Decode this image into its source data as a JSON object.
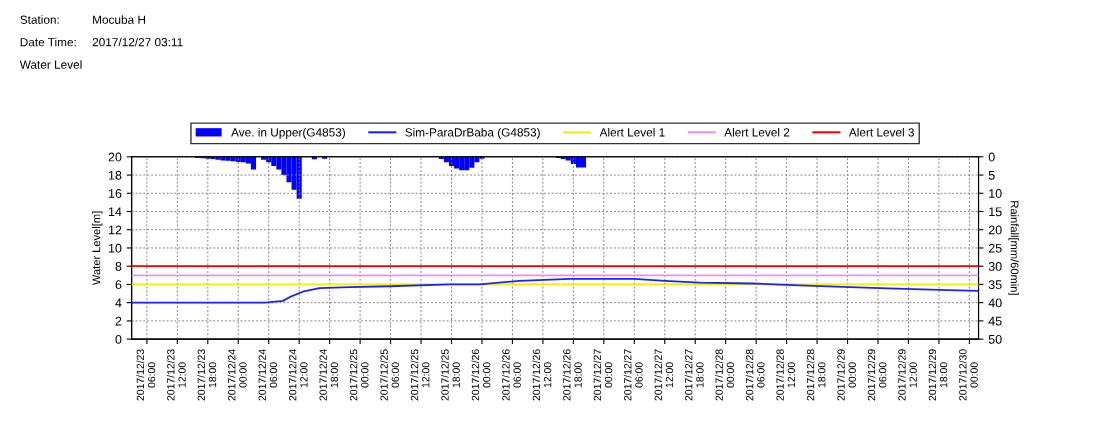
{
  "chart_data": {
    "type": "line",
    "title": "Water Level",
    "annotations": [
      "Station:",
      "Mocuba H",
      "Date Time:",
      "2017/12/27 03:11"
    ],
    "ylabel": "Water Level[m]",
    "y2label": "Rainfall[mm/60min]",
    "xlim": [
      "2017-12-23T03:00",
      "2017-12-30T01:48"
    ],
    "xticks": [
      {
        "value": "2017-12-23T06:00",
        "label": "2017/12/23\n06:00"
      },
      {
        "value": "2017-12-23T12:00",
        "label": "2017/12/23\n12:00"
      },
      {
        "value": "2017-12-23T18:00",
        "label": "2017/12/23\n18:00"
      },
      {
        "value": "2017-12-24T00:00",
        "label": "2017/12/24\n00:00"
      },
      {
        "value": "2017-12-24T06:00",
        "label": "2017/12/24\n06:00"
      },
      {
        "value": "2017-12-24T12:00",
        "label": "2017/12/24\n12:00"
      },
      {
        "value": "2017-12-24T18:00",
        "label": "2017/12/24\n18:00"
      },
      {
        "value": "2017-12-25T00:00",
        "label": "2017/12/25\n00:00"
      },
      {
        "value": "2017-12-25T06:00",
        "label": "2017/12/25\n06:00"
      },
      {
        "value": "2017-12-25T12:00",
        "label": "2017/12/25\n12:00"
      },
      {
        "value": "2017-12-25T18:00",
        "label": "2017/12/25\n18:00"
      },
      {
        "value": "2017-12-26T00:00",
        "label": "2017/12/26\n00:00"
      },
      {
        "value": "2017-12-26T06:00",
        "label": "2017/12/26\n06:00"
      },
      {
        "value": "2017-12-26T12:00",
        "label": "2017/12/26\n12:00"
      },
      {
        "value": "2017-12-26T18:00",
        "label": "2017/12/26\n18:00"
      },
      {
        "value": "2017-12-27T00:00",
        "label": "2017/12/27\n00:00"
      },
      {
        "value": "2017-12-27T06:00",
        "label": "2017/12/27\n06:00"
      },
      {
        "value": "2017-12-27T12:00",
        "label": "2017/12/27\n12:00"
      },
      {
        "value": "2017-12-27T18:00",
        "label": "2017/12/27\n18:00"
      },
      {
        "value": "2017-12-28T00:00",
        "label": "2017/12/28\n00:00"
      },
      {
        "value": "2017-12-28T06:00",
        "label": "2017/12/28\n06:00"
      },
      {
        "value": "2017-12-28T12:00",
        "label": "2017/12/28\n12:00"
      },
      {
        "value": "2017-12-28T18:00",
        "label": "2017/12/28\n18:00"
      },
      {
        "value": "2017-12-29T00:00",
        "label": "2017/12/29\n00:00"
      },
      {
        "value": "2017-12-29T06:00",
        "label": "2017/12/29\n06:00"
      },
      {
        "value": "2017-12-29T12:00",
        "label": "2017/12/29\n12:00"
      },
      {
        "value": "2017-12-29T18:00",
        "label": "2017/12/29\n18:00"
      },
      {
        "value": "2017-12-30T00:00",
        "label": "2017/12/30\n00:00"
      }
    ],
    "ylim": [
      0,
      20
    ],
    "yticks": [
      0,
      2,
      4,
      6,
      8,
      10,
      12,
      14,
      16,
      18,
      20
    ],
    "y2lim": [
      50,
      0
    ],
    "y2ticks": [
      0,
      5,
      10,
      15,
      20,
      25,
      30,
      35,
      40,
      45,
      50
    ],
    "grid": true,
    "legend": "top",
    "marker": "none",
    "line_style": "solid",
    "series": [
      {
        "name": "Ave. in Upper(G4853)",
        "type": "bar",
        "axis": "y2",
        "color": "#0000ff",
        "x": [
          "2017-12-23T16:00",
          "2017-12-23T17:00",
          "2017-12-23T18:00",
          "2017-12-23T19:00",
          "2017-12-23T20:00",
          "2017-12-23T21:00",
          "2017-12-23T22:00",
          "2017-12-23T23:00",
          "2017-12-24T00:00",
          "2017-12-24T01:00",
          "2017-12-24T02:00",
          "2017-12-24T03:00",
          "2017-12-24T05:00",
          "2017-12-24T06:00",
          "2017-12-24T07:00",
          "2017-12-24T08:00",
          "2017-12-24T09:00",
          "2017-12-24T10:00",
          "2017-12-24T11:00",
          "2017-12-24T12:00",
          "2017-12-24T15:00",
          "2017-12-24T17:00",
          "2017-12-25T16:00",
          "2017-12-25T17:00",
          "2017-12-25T18:00",
          "2017-12-25T19:00",
          "2017-12-25T20:00",
          "2017-12-25T21:00",
          "2017-12-25T22:00",
          "2017-12-25T23:00",
          "2017-12-26T00:00",
          "2017-12-26T15:00",
          "2017-12-26T16:00",
          "2017-12-26T17:00",
          "2017-12-26T18:00",
          "2017-12-26T19:00",
          "2017-12-26T20:00"
        ],
        "values": [
          0.3,
          0.4,
          0.5,
          0.6,
          0.8,
          1.0,
          1.1,
          1.2,
          1.4,
          1.5,
          1.8,
          3.5,
          0.8,
          1.5,
          2.5,
          3.5,
          5,
          7,
          9,
          11.5,
          0.7,
          0.5,
          0.6,
          1.5,
          2.5,
          3.2,
          3.7,
          3.7,
          3.0,
          1.5,
          0.5,
          0.3,
          0.6,
          1.0,
          2.0,
          2.9,
          2.9
        ]
      },
      {
        "name": "Sim-ParaDrBaba (G4853)",
        "color": "#2020ff",
        "x": [
          "2017-12-23T03:00",
          "2017-12-23T14:30",
          "2017-12-24T00:18",
          "2017-12-24T05:12",
          "2017-12-24T08:48",
          "2017-12-24T10:06",
          "2017-12-24T12:42",
          "2017-12-24T16:00",
          "2017-12-24T22:00",
          "2017-12-25T05:48",
          "2017-12-25T17:36",
          "2017-12-25T23:36",
          "2017-12-26T07:24",
          "2017-12-26T17:18",
          "2017-12-27T06:00",
          "2017-12-27T12:00",
          "2017-12-27T18:54",
          "2017-12-28T05:18",
          "2017-12-28T14:30",
          "2017-12-29T06:18",
          "2017-12-29T18:00",
          "2017-12-30T01:48"
        ],
        "values": [
          4.0,
          4.0,
          4.0,
          4.0,
          4.2,
          4.6,
          5.2,
          5.6,
          5.7,
          5.8,
          6.0,
          6.0,
          6.4,
          6.6,
          6.6,
          6.4,
          6.2,
          6.1,
          5.9,
          5.6,
          5.4,
          5.3
        ]
      }
    ],
    "ref_lines": [
      {
        "axis": "y",
        "value": 6,
        "label": "Alert Level 1",
        "color": "#f0f000"
      },
      {
        "axis": "y",
        "value": 7,
        "label": "Alert Level 2",
        "color": "#f08ef0"
      },
      {
        "axis": "y",
        "value": 8,
        "label": "Alert Level 3",
        "color": "#ff0000"
      }
    ]
  }
}
